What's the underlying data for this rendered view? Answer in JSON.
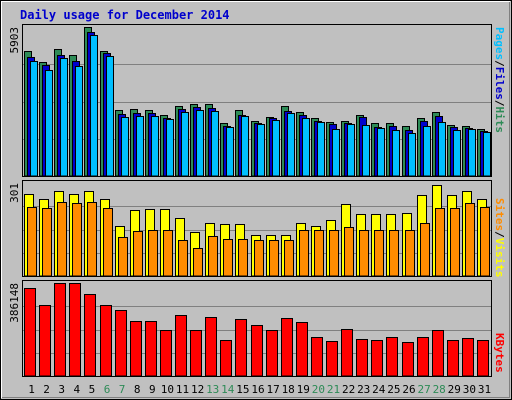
{
  "chart_data": {
    "type": "bar",
    "title": "Daily usage for December 2014",
    "categories": [
      "1",
      "2",
      "3",
      "4",
      "5",
      "6",
      "7",
      "8",
      "9",
      "10",
      "11",
      "12",
      "13",
      "14",
      "15",
      "16",
      "17",
      "18",
      "19",
      "20",
      "21",
      "22",
      "23",
      "24",
      "25",
      "26",
      "27",
      "28",
      "29",
      "30",
      "31"
    ],
    "weekend_days": [
      "6",
      "7",
      "13",
      "14",
      "20",
      "21",
      "27",
      "28"
    ],
    "panels": [
      {
        "name": "hits-files-pages",
        "max_label": "5903",
        "ymax": 5903,
        "right_label": [
          "Pages",
          "/",
          "Files",
          "/",
          "Hits"
        ],
        "series": [
          {
            "name": "Hits",
            "color": "#2e8b57",
            "values": [
              4960,
              4500,
              5030,
              4800,
              5903,
              4960,
              2610,
              2670,
              2620,
              2430,
              2770,
              2850,
              2850,
              2090,
              2610,
              2170,
              2350,
              2770,
              2540,
              2300,
              2130,
              2170,
              2430,
              2110,
              2100,
              1990,
              2300,
              2540,
              2040,
              1990,
              1860
            ]
          },
          {
            "name": "Files",
            "color": "#0000cd",
            "values": [
              4730,
              4400,
              4800,
              4560,
              5710,
              4860,
              2440,
              2510,
              2480,
              2310,
              2660,
              2720,
              2680,
              1990,
              2430,
              2110,
              2280,
              2580,
              2410,
              2180,
              2050,
              2110,
              2320,
              1960,
              1970,
              1810,
              2180,
              2380,
              1960,
              1900,
              1790
            ]
          },
          {
            "name": "Pages",
            "color": "#00bfff",
            "values": [
              4560,
              4200,
              4690,
              4350,
              5580,
              4760,
              2330,
              2360,
              2370,
              2240,
              2540,
              2600,
              2570,
              1930,
              2360,
              2050,
              2210,
              2480,
              2310,
              2120,
              1880,
              2050,
              2010,
              1890,
              1820,
              1700,
              2000,
              2140,
              1820,
              1860,
              1730
            ]
          }
        ]
      },
      {
        "name": "visits-sites",
        "max_label": "301",
        "ymax": 301,
        "right_label": [
          "Sites",
          "/",
          "Visits"
        ],
        "series": [
          {
            "name": "Visits",
            "color": "#ffff00",
            "values": [
              265,
              250,
              275,
              265,
              275,
              250,
              163,
              213,
              217,
              217,
              187,
              142,
              173,
              168,
              168,
              132,
              132,
              132,
              170,
              163,
              180,
              232,
              201,
              201,
              201,
              205,
              262,
              296,
              262,
              275,
              250
            ]
          },
          {
            "name": "Sites",
            "color": "#ff8c00",
            "values": [
              224,
              220,
              238,
              236,
              238,
              220,
              127,
              147,
              150,
              150,
              115,
              90,
              130,
              120,
              120,
              118,
              118,
              116,
              150,
              150,
              150,
              157,
              150,
              150,
              150,
              150,
              170,
              220,
              220,
              236,
              224
            ]
          }
        ]
      },
      {
        "name": "kbytes",
        "max_label": "386148",
        "ymax": 386148,
        "right_label": [
          "KBytes"
        ],
        "series": [
          {
            "name": "KBytes",
            "color": "#ff0000",
            "values": [
              364000,
              293000,
              386148,
              386148,
              339000,
              294000,
              275000,
              229000,
              229000,
              190000,
              252000,
              190000,
              247000,
              150000,
              238000,
              211000,
              190000,
              241000,
              224000,
              163000,
              145000,
              194000,
              152000,
              150000,
              163000,
              141000,
              160000,
              191000,
              150000,
              156000,
              150000
            ]
          }
        ]
      }
    ]
  }
}
